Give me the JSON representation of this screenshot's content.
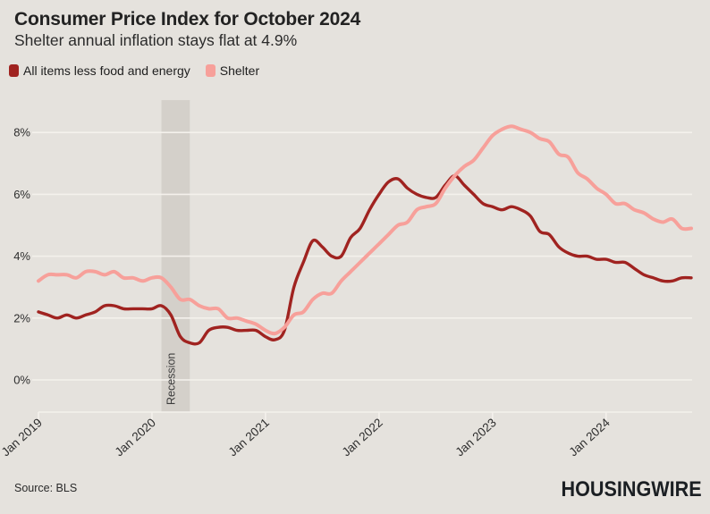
{
  "page": {
    "background": "#e5e2dd"
  },
  "header": {
    "title": "Consumer Price Index for October 2024",
    "subtitle": "Shelter annual inflation stays flat at 4.9%"
  },
  "legend": {
    "items": [
      {
        "label": "All items less food and energy",
        "color": "#a02320"
      },
      {
        "label": "Shelter",
        "color": "#f7a09a"
      }
    ]
  },
  "footer": {
    "source": "Source: BLS",
    "brand": "HOUSINGWIRE"
  },
  "chart_data": {
    "type": "line",
    "title": "Consumer Price Index for October 2024",
    "subtitle": "Shelter annual inflation stays flat at 4.9%",
    "x_range": {
      "start": "Jan 2019",
      "end": "Oct 2024",
      "unit": "month"
    },
    "x_tick_labels": [
      "Jan 2019",
      "Jan 2020",
      "Jan 2021",
      "Jan 2022",
      "Jan 2023",
      "Jan 2024"
    ],
    "x_tick_month_indices": [
      0,
      12,
      24,
      36,
      48,
      60
    ],
    "y_ticks": [
      0,
      2,
      4,
      6,
      8
    ],
    "y_tick_labels": [
      "0%",
      "2%",
      "4%",
      "6%",
      "8%"
    ],
    "ylim": [
      -1,
      9
    ],
    "grid": true,
    "colors": {
      "grid": "#f4f1ec",
      "axis_text": "#2d2d2d"
    },
    "series": [
      {
        "name": "All items less food and energy",
        "color": "#a02320",
        "stroke_width": 3.4,
        "values": [
          2.2,
          2.1,
          2.0,
          2.1,
          2.0,
          2.1,
          2.2,
          2.4,
          2.4,
          2.3,
          2.3,
          2.3,
          2.3,
          2.4,
          2.1,
          1.4,
          1.2,
          1.2,
          1.6,
          1.7,
          1.7,
          1.6,
          1.6,
          1.6,
          1.4,
          1.3,
          1.6,
          3.0,
          3.8,
          4.5,
          4.3,
          4.0,
          4.0,
          4.6,
          4.9,
          5.5,
          6.0,
          6.4,
          6.5,
          6.2,
          6.0,
          5.9,
          5.9,
          6.3,
          6.6,
          6.3,
          6.0,
          5.7,
          5.6,
          5.5,
          5.6,
          5.5,
          5.3,
          4.8,
          4.7,
          4.3,
          4.1,
          4.0,
          4.0,
          3.9,
          3.9,
          3.8,
          3.8,
          3.6,
          3.4,
          3.3,
          3.2,
          3.2,
          3.3,
          3.3
        ]
      },
      {
        "name": "Shelter",
        "color": "#f7a09a",
        "stroke_width": 4,
        "values": [
          3.2,
          3.4,
          3.4,
          3.4,
          3.3,
          3.5,
          3.5,
          3.4,
          3.5,
          3.3,
          3.3,
          3.2,
          3.3,
          3.3,
          3.0,
          2.6,
          2.6,
          2.4,
          2.3,
          2.3,
          2.0,
          2.0,
          1.9,
          1.8,
          1.6,
          1.5,
          1.7,
          2.1,
          2.2,
          2.6,
          2.8,
          2.8,
          3.2,
          3.5,
          3.8,
          4.1,
          4.4,
          4.7,
          5.0,
          5.1,
          5.5,
          5.6,
          5.7,
          6.2,
          6.6,
          6.9,
          7.1,
          7.5,
          7.9,
          8.1,
          8.2,
          8.1,
          8.0,
          7.8,
          7.7,
          7.3,
          7.2,
          6.7,
          6.5,
          6.2,
          6.0,
          5.7,
          5.7,
          5.5,
          5.4,
          5.2,
          5.1,
          5.2,
          4.9,
          4.9
        ]
      }
    ],
    "recession_band": {
      "label": "Recession",
      "start_month_index": 13,
      "end_month_index": 16,
      "color": "#d4d0ca"
    }
  }
}
